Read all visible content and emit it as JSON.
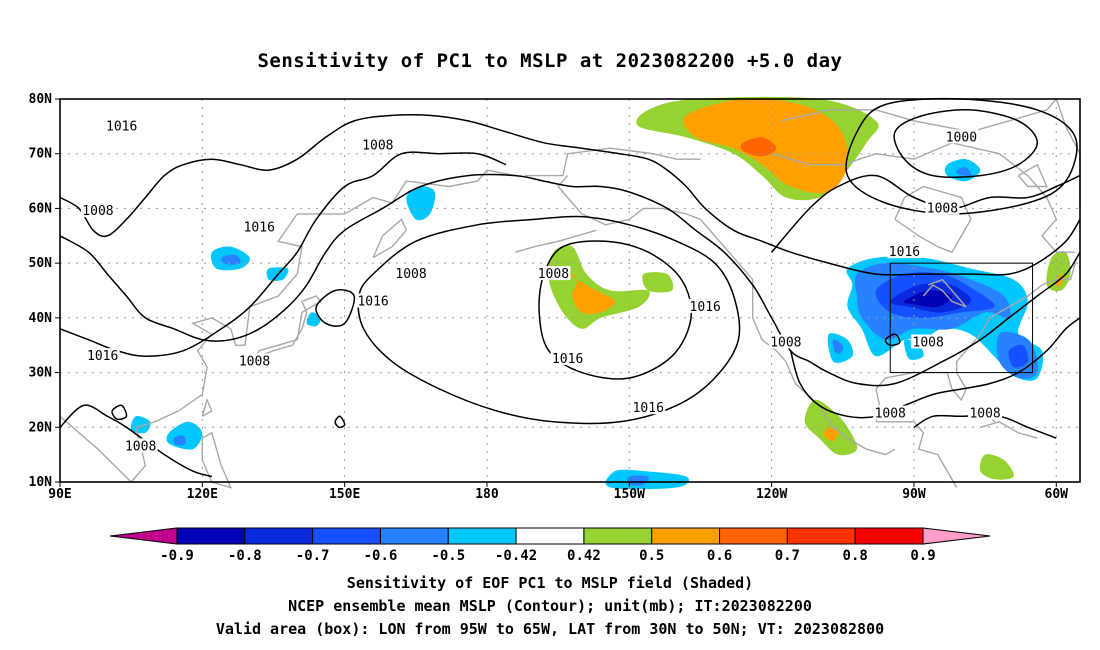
{
  "title": "Sensitivity of PC1 to MSLP at 2023082200 +5.0 day",
  "footer": {
    "line1": "Sensitivity of EOF PC1 to MSLP field (Shaded)",
    "line2": "NCEP ensemble mean MSLP (Contour); unit(mb); IT:2023082200",
    "line3": "Valid area (box): LON from 95W to 65W, LAT from 30N to 50N; VT: 2023082800"
  },
  "map": {
    "lon_range": [
      90,
      305
    ],
    "lat_range": [
      10,
      80
    ],
    "lat_labels": [
      "80N",
      "70N",
      "60N",
      "50N",
      "40N",
      "30N",
      "20N",
      "10N"
    ],
    "lon_labels": [
      "90E",
      "120E",
      "150E",
      "180",
      "150W",
      "120W",
      "90W",
      "60W"
    ],
    "valid_box": {
      "lon_west": -95,
      "lon_east": -65,
      "lat_south": 30,
      "lat_north": 50
    },
    "contour_labels": [
      {
        "text": "1016",
        "lon": 103,
        "lat": 75
      },
      {
        "text": "1008",
        "lon": 157,
        "lat": 71.5
      },
      {
        "text": "1000",
        "lon": 280,
        "lat": 73
      },
      {
        "text": "1008",
        "lon": 98,
        "lat": 59.5
      },
      {
        "text": "1016",
        "lon": 132,
        "lat": 56.5
      },
      {
        "text": "1008",
        "lon": 276,
        "lat": 60
      },
      {
        "text": "1016",
        "lon": 268,
        "lat": 52
      },
      {
        "text": "1008",
        "lon": 164,
        "lat": 48
      },
      {
        "text": "1008",
        "lon": 194,
        "lat": 48
      },
      {
        "text": "1016",
        "lon": 156,
        "lat": 43
      },
      {
        "text": "1016",
        "lon": 226,
        "lat": 42
      },
      {
        "text": "1008",
        "lon": 243,
        "lat": 35.5
      },
      {
        "text": "1016",
        "lon": 99,
        "lat": 33
      },
      {
        "text": "1008",
        "lon": 131,
        "lat": 32
      },
      {
        "text": "1016",
        "lon": 197,
        "lat": 32.5
      },
      {
        "text": "1008",
        "lon": 273,
        "lat": 35.5
      },
      {
        "text": "1016",
        "lon": 214,
        "lat": 23.5
      },
      {
        "text": "1008",
        "lon": 265,
        "lat": 22.5
      },
      {
        "text": "1008",
        "lon": 285,
        "lat": 22.5
      },
      {
        "text": "1008",
        "lon": 107,
        "lat": 16.5
      }
    ]
  },
  "colorbar": {
    "labels": [
      "-0.9",
      "-0.8",
      "-0.7",
      "-0.6",
      "-0.5",
      "-0.42",
      "0.42",
      "0.5",
      "0.6",
      "0.7",
      "0.8",
      "0.9"
    ],
    "colors": [
      "#c0008c",
      "#0000b4",
      "#0a28dc",
      "#1450ff",
      "#2882ff",
      "#00c8ff",
      "#ffffff",
      "#96d232",
      "#ffa000",
      "#ff6400",
      "#ff3200",
      "#ff0000",
      "#ff9ec8"
    ]
  },
  "colors": {
    "contour": "#000000",
    "coast": "#a8a8a8",
    "grid": "#9a9a9a"
  }
}
